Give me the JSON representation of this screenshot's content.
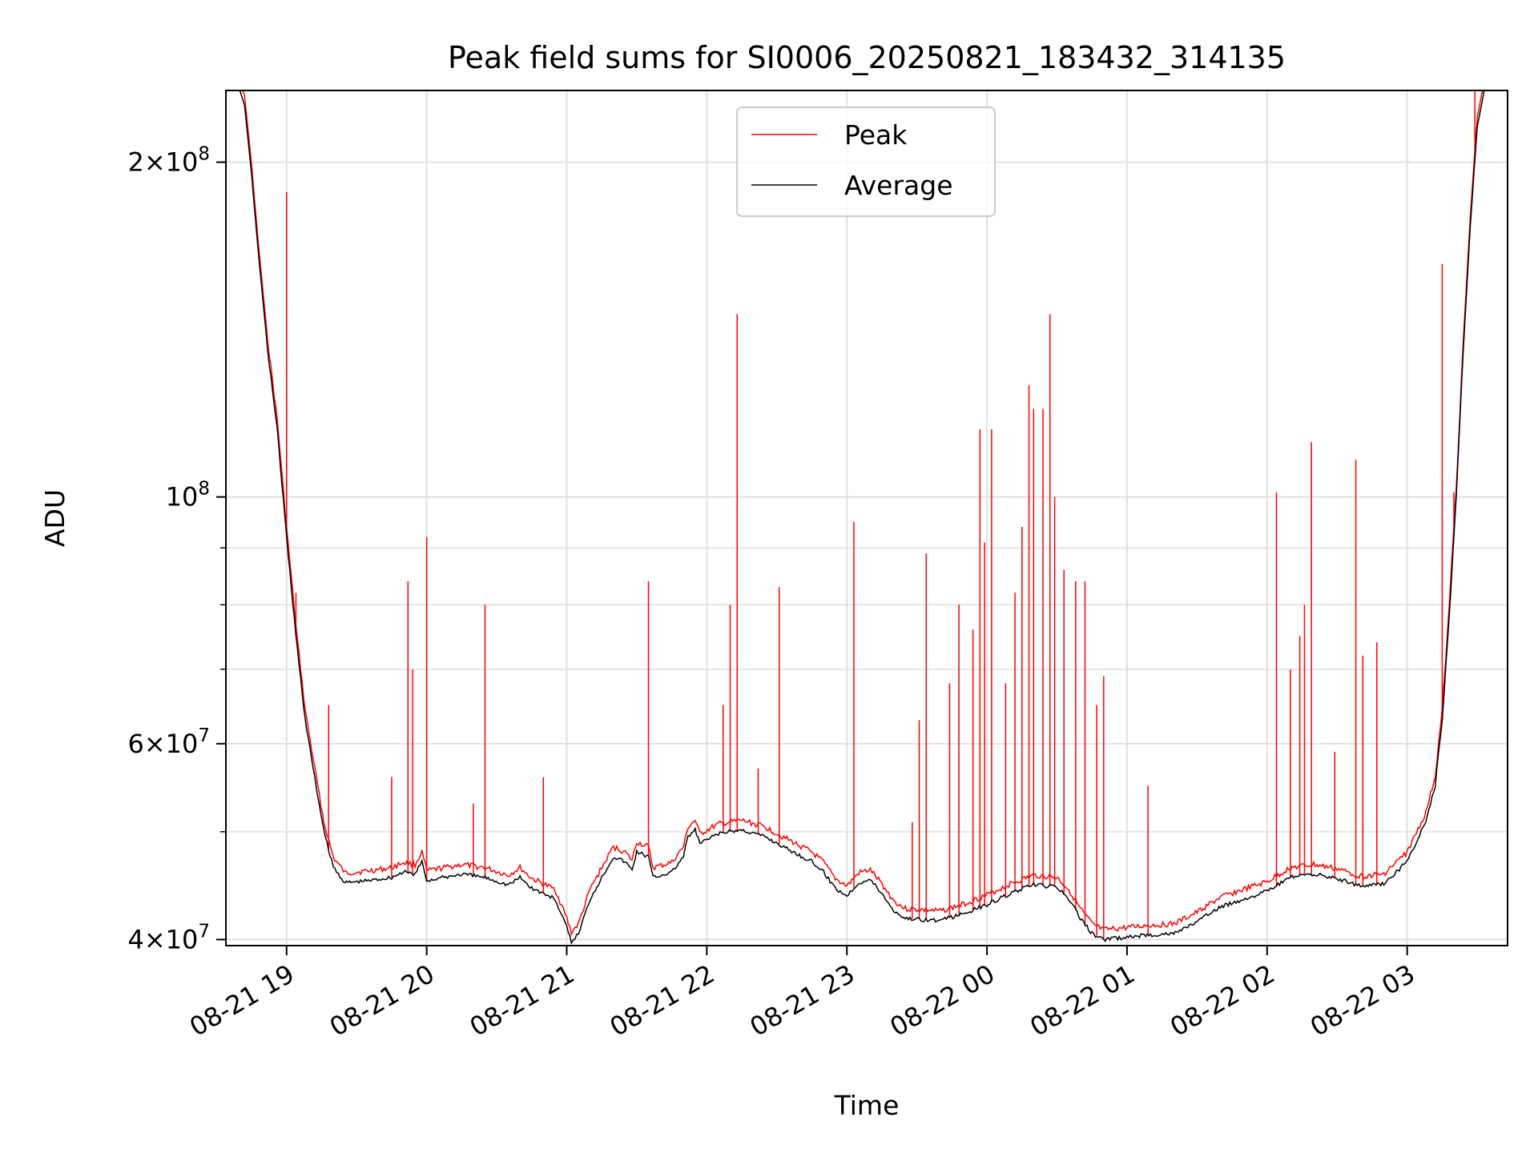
{
  "chart_data": {
    "type": "line",
    "title": "Peak field sums for SI0006_20250821_183432_314135",
    "xlabel": "Time",
    "ylabel": "ADU",
    "yscale": "log",
    "xlim": [
      "2025-08-21 18:34",
      "2025-08-22 03:43"
    ],
    "ylim": [
      39500000,
      232000000
    ],
    "x_ticks": [
      {
        "t": "2025-08-21 19:00",
        "label": "08-21 19"
      },
      {
        "t": "2025-08-21 20:00",
        "label": "08-21 20"
      },
      {
        "t": "2025-08-21 21:00",
        "label": "08-21 21"
      },
      {
        "t": "2025-08-21 22:00",
        "label": "08-21 22"
      },
      {
        "t": "2025-08-21 23:00",
        "label": "08-21 23"
      },
      {
        "t": "2025-08-22 00:00",
        "label": "08-22 00"
      },
      {
        "t": "2025-08-22 01:00",
        "label": "08-22 01"
      },
      {
        "t": "2025-08-22 02:00",
        "label": "08-22 02"
      },
      {
        "t": "2025-08-22 03:00",
        "label": "08-22 03"
      }
    ],
    "y_major_ticks": [
      {
        "value": 40000000,
        "base": "4",
        "exp": "7"
      },
      {
        "value": 60000000,
        "base": "6",
        "exp": "7"
      },
      {
        "value": 100000000,
        "base": "",
        "exp": "8"
      },
      {
        "value": 200000000,
        "base": "2",
        "exp": "8"
      }
    ],
    "y_minor_ticks": [
      50000000,
      70000000,
      80000000,
      90000000
    ],
    "grid": true,
    "legend_position": "upper center",
    "series": [
      {
        "name": "Average",
        "color": "#000000",
        "points": [
          [
            "2025-08-21 18:34",
            232000000
          ],
          [
            "2025-08-21 18:40",
            232000000
          ],
          [
            "2025-08-21 18:42",
            225000000
          ],
          [
            "2025-08-21 18:45",
            195000000
          ],
          [
            "2025-08-21 18:48",
            165000000
          ],
          [
            "2025-08-21 18:52",
            135000000
          ],
          [
            "2025-08-21 18:56",
            115000000
          ],
          [
            "2025-08-21 19:00",
            92000000
          ],
          [
            "2025-08-21 19:04",
            75000000
          ],
          [
            "2025-08-21 19:08",
            63000000
          ],
          [
            "2025-08-21 19:12",
            56000000
          ],
          [
            "2025-08-21 19:16",
            50000000
          ],
          [
            "2025-08-21 19:20",
            46500000
          ],
          [
            "2025-08-21 19:25",
            45000000
          ],
          [
            "2025-08-21 19:35",
            45200000
          ],
          [
            "2025-08-21 19:45",
            45500000
          ],
          [
            "2025-08-21 19:50",
            46000000
          ],
          [
            "2025-08-21 19:55",
            45800000
          ],
          [
            "2025-08-21 19:58",
            47000000
          ],
          [
            "2025-08-21 20:00",
            45200000
          ],
          [
            "2025-08-21 20:15",
            45800000
          ],
          [
            "2025-08-21 20:25",
            45500000
          ],
          [
            "2025-08-21 20:35",
            44800000
          ],
          [
            "2025-08-21 20:40",
            45500000
          ],
          [
            "2025-08-21 20:45",
            44500000
          ],
          [
            "2025-08-21 20:55",
            43500000
          ],
          [
            "2025-08-21 21:00",
            41000000
          ],
          [
            "2025-08-21 21:02",
            39800000
          ],
          [
            "2025-08-21 21:05",
            40500000
          ],
          [
            "2025-08-21 21:10",
            43500000
          ],
          [
            "2025-08-21 21:15",
            45500000
          ],
          [
            "2025-08-21 21:20",
            47500000
          ],
          [
            "2025-08-21 21:25",
            47000000
          ],
          [
            "2025-08-21 21:28",
            46200000
          ],
          [
            "2025-08-21 21:30",
            48000000
          ],
          [
            "2025-08-21 21:35",
            47500000
          ],
          [
            "2025-08-21 21:37",
            45500000
          ],
          [
            "2025-08-21 21:45",
            46000000
          ],
          [
            "2025-08-21 21:50",
            47500000
          ],
          [
            "2025-08-21 21:52",
            49500000
          ],
          [
            "2025-08-21 21:55",
            50200000
          ],
          [
            "2025-08-21 21:57",
            48800000
          ],
          [
            "2025-08-21 22:05",
            49800000
          ],
          [
            "2025-08-21 22:15",
            50200000
          ],
          [
            "2025-08-21 22:25",
            49500000
          ],
          [
            "2025-08-21 22:35",
            48200000
          ],
          [
            "2025-08-21 22:45",
            47000000
          ],
          [
            "2025-08-21 22:50",
            46000000
          ],
          [
            "2025-08-21 22:55",
            44500000
          ],
          [
            "2025-08-21 23:00",
            43800000
          ],
          [
            "2025-08-21 23:05",
            45000000
          ],
          [
            "2025-08-21 23:10",
            45300000
          ],
          [
            "2025-08-21 23:15",
            44000000
          ],
          [
            "2025-08-21 23:20",
            42500000
          ],
          [
            "2025-08-21 23:25",
            41800000
          ],
          [
            "2025-08-21 23:40",
            41600000
          ],
          [
            "2025-08-21 23:50",
            42200000
          ],
          [
            "2025-08-22 00:00",
            43000000
          ],
          [
            "2025-08-22 00:10",
            44000000
          ],
          [
            "2025-08-22 00:20",
            44800000
          ],
          [
            "2025-08-22 00:30",
            44600000
          ],
          [
            "2025-08-22 00:35",
            43500000
          ],
          [
            "2025-08-22 00:40",
            41800000
          ],
          [
            "2025-08-22 00:45",
            40500000
          ],
          [
            "2025-08-22 00:50",
            40000000
          ],
          [
            "2025-08-22 01:00",
            40200000
          ],
          [
            "2025-08-22 01:10",
            40400000
          ],
          [
            "2025-08-22 01:20",
            40500000
          ],
          [
            "2025-08-22 01:30",
            41500000
          ],
          [
            "2025-08-22 01:40",
            42800000
          ],
          [
            "2025-08-22 01:50",
            43500000
          ],
          [
            "2025-08-22 02:00",
            44200000
          ],
          [
            "2025-08-22 02:10",
            45500000
          ],
          [
            "2025-08-22 02:20",
            45800000
          ],
          [
            "2025-08-22 02:30",
            45400000
          ],
          [
            "2025-08-22 02:40",
            44700000
          ],
          [
            "2025-08-22 02:50",
            44900000
          ],
          [
            "2025-08-22 03:00",
            47000000
          ],
          [
            "2025-08-22 03:08",
            51000000
          ],
          [
            "2025-08-22 03:12",
            55000000
          ],
          [
            "2025-08-22 03:15",
            63000000
          ],
          [
            "2025-08-22 03:18",
            78000000
          ],
          [
            "2025-08-22 03:21",
            100000000
          ],
          [
            "2025-08-22 03:24",
            135000000
          ],
          [
            "2025-08-22 03:27",
            175000000
          ],
          [
            "2025-08-22 03:30",
            215000000
          ],
          [
            "2025-08-22 03:33",
            232000000
          ],
          [
            "2025-08-22 03:43",
            232000000
          ]
        ]
      },
      {
        "name": "Peak",
        "color": "#ff0000",
        "spikes": [
          [
            "2025-08-21 19:00",
            188000000
          ],
          [
            "2025-08-21 19:04",
            82000000
          ],
          [
            "2025-08-21 19:18",
            65000000
          ],
          [
            "2025-08-21 19:45",
            56000000
          ],
          [
            "2025-08-21 19:52",
            84000000
          ],
          [
            "2025-08-21 19:54",
            70000000
          ],
          [
            "2025-08-21 20:00",
            92000000
          ],
          [
            "2025-08-21 20:20",
            53000000
          ],
          [
            "2025-08-21 20:25",
            80000000
          ],
          [
            "2025-08-21 20:50",
            56000000
          ],
          [
            "2025-08-21 21:35",
            84000000
          ],
          [
            "2025-08-21 22:07",
            65000000
          ],
          [
            "2025-08-21 22:10",
            80000000
          ],
          [
            "2025-08-21 22:13",
            146000000
          ],
          [
            "2025-08-21 22:22",
            57000000
          ],
          [
            "2025-08-21 22:31",
            83000000
          ],
          [
            "2025-08-21 23:03",
            95000000
          ],
          [
            "2025-08-21 23:28",
            51000000
          ],
          [
            "2025-08-21 23:31",
            63000000
          ],
          [
            "2025-08-21 23:34",
            89000000
          ],
          [
            "2025-08-21 23:44",
            68000000
          ],
          [
            "2025-08-21 23:48",
            80000000
          ],
          [
            "2025-08-21 23:54",
            76000000
          ],
          [
            "2025-08-21 23:57",
            115000000
          ],
          [
            "2025-08-21 23:59",
            91000000
          ],
          [
            "2025-08-22 00:02",
            115000000
          ],
          [
            "2025-08-22 00:08",
            68000000
          ],
          [
            "2025-08-22 00:12",
            82000000
          ],
          [
            "2025-08-22 00:15",
            94000000
          ],
          [
            "2025-08-22 00:18",
            126000000
          ],
          [
            "2025-08-22 00:20",
            120000000
          ],
          [
            "2025-08-22 00:24",
            120000000
          ],
          [
            "2025-08-22 00:27",
            146000000
          ],
          [
            "2025-08-22 00:29",
            100000000
          ],
          [
            "2025-08-22 00:33",
            86000000
          ],
          [
            "2025-08-22 00:38",
            84000000
          ],
          [
            "2025-08-22 00:42",
            84000000
          ],
          [
            "2025-08-22 00:47",
            65000000
          ],
          [
            "2025-08-22 00:50",
            69000000
          ],
          [
            "2025-08-22 01:09",
            55000000
          ],
          [
            "2025-08-22 02:04",
            101000000
          ],
          [
            "2025-08-22 02:10",
            70000000
          ],
          [
            "2025-08-22 02:14",
            75000000
          ],
          [
            "2025-08-22 02:16",
            80000000
          ],
          [
            "2025-08-22 02:19",
            112000000
          ],
          [
            "2025-08-22 02:29",
            59000000
          ],
          [
            "2025-08-22 02:38",
            108000000
          ],
          [
            "2025-08-22 02:41",
            72000000
          ],
          [
            "2025-08-22 02:47",
            74000000
          ],
          [
            "2025-08-22 03:15",
            162000000
          ],
          [
            "2025-08-22 03:20",
            101000000
          ],
          [
            "2025-08-22 03:29",
            232000000
          ]
        ]
      }
    ]
  }
}
